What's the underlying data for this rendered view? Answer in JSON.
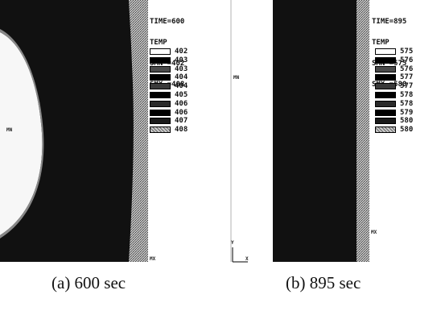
{
  "panel_a": {
    "time_line": "TIME=600",
    "var_line": "TEMP",
    "smn_line": "SMN =402",
    "smx_line": "SMX =408",
    "legend_levels": [
      "402",
      "403",
      "403",
      "404",
      "404",
      "405",
      "406",
      "406",
      "407",
      "408"
    ],
    "caption": "(a) 600 sec"
  },
  "panel_b": {
    "time_line": "TIME=895",
    "var_line": "TEMP",
    "smn_line": "SMN =575",
    "smx_line": "SMX =580",
    "legend_levels": [
      "575",
      "576",
      "576",
      "577",
      "577",
      "578",
      "578",
      "579",
      "580",
      "580"
    ],
    "caption": "(b) 895 sec"
  },
  "markers": {
    "mn": "MN",
    "mx": "MX",
    "y": "Y",
    "x": "X"
  },
  "colors": {
    "background": "#ffffff",
    "dark_fill": "#111111",
    "light_fill": "#f7f7f7",
    "stipple": "#9a9a9a"
  }
}
